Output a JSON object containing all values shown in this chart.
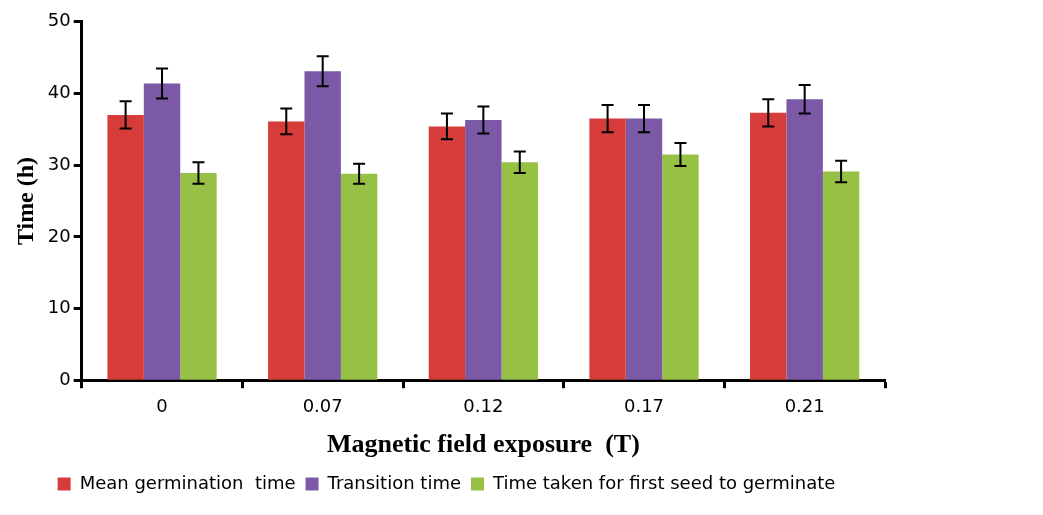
{
  "chart_data": {
    "type": "bar",
    "xlabel": "Magnetic field exposure  (T)",
    "ylabel": "Time (h)",
    "categories": [
      "0",
      "0.07",
      "0.12",
      "0.17",
      "0.21"
    ],
    "series": [
      {
        "name": "Mean germination  time",
        "color": "#d63d3a",
        "values": [
          37.0,
          36.1,
          35.4,
          36.5,
          37.3
        ],
        "errors": [
          1.9,
          1.8,
          1.8,
          1.9,
          1.9
        ]
      },
      {
        "name": "Transition time",
        "color": "#7b59a6",
        "values": [
          41.4,
          43.1,
          36.3,
          36.5,
          39.2
        ],
        "errors": [
          2.1,
          2.1,
          1.9,
          1.9,
          2.0
        ]
      },
      {
        "name": "Time taken for first seed to germinate",
        "color": "#96c145",
        "values": [
          28.9,
          28.8,
          30.4,
          31.5,
          29.1
        ],
        "errors": [
          1.5,
          1.4,
          1.5,
          1.6,
          1.5
        ]
      }
    ],
    "ylim": [
      0,
      50
    ],
    "yticks": [
      0,
      10,
      20,
      30,
      40,
      50
    ],
    "grid": false,
    "legend": "bottom"
  }
}
